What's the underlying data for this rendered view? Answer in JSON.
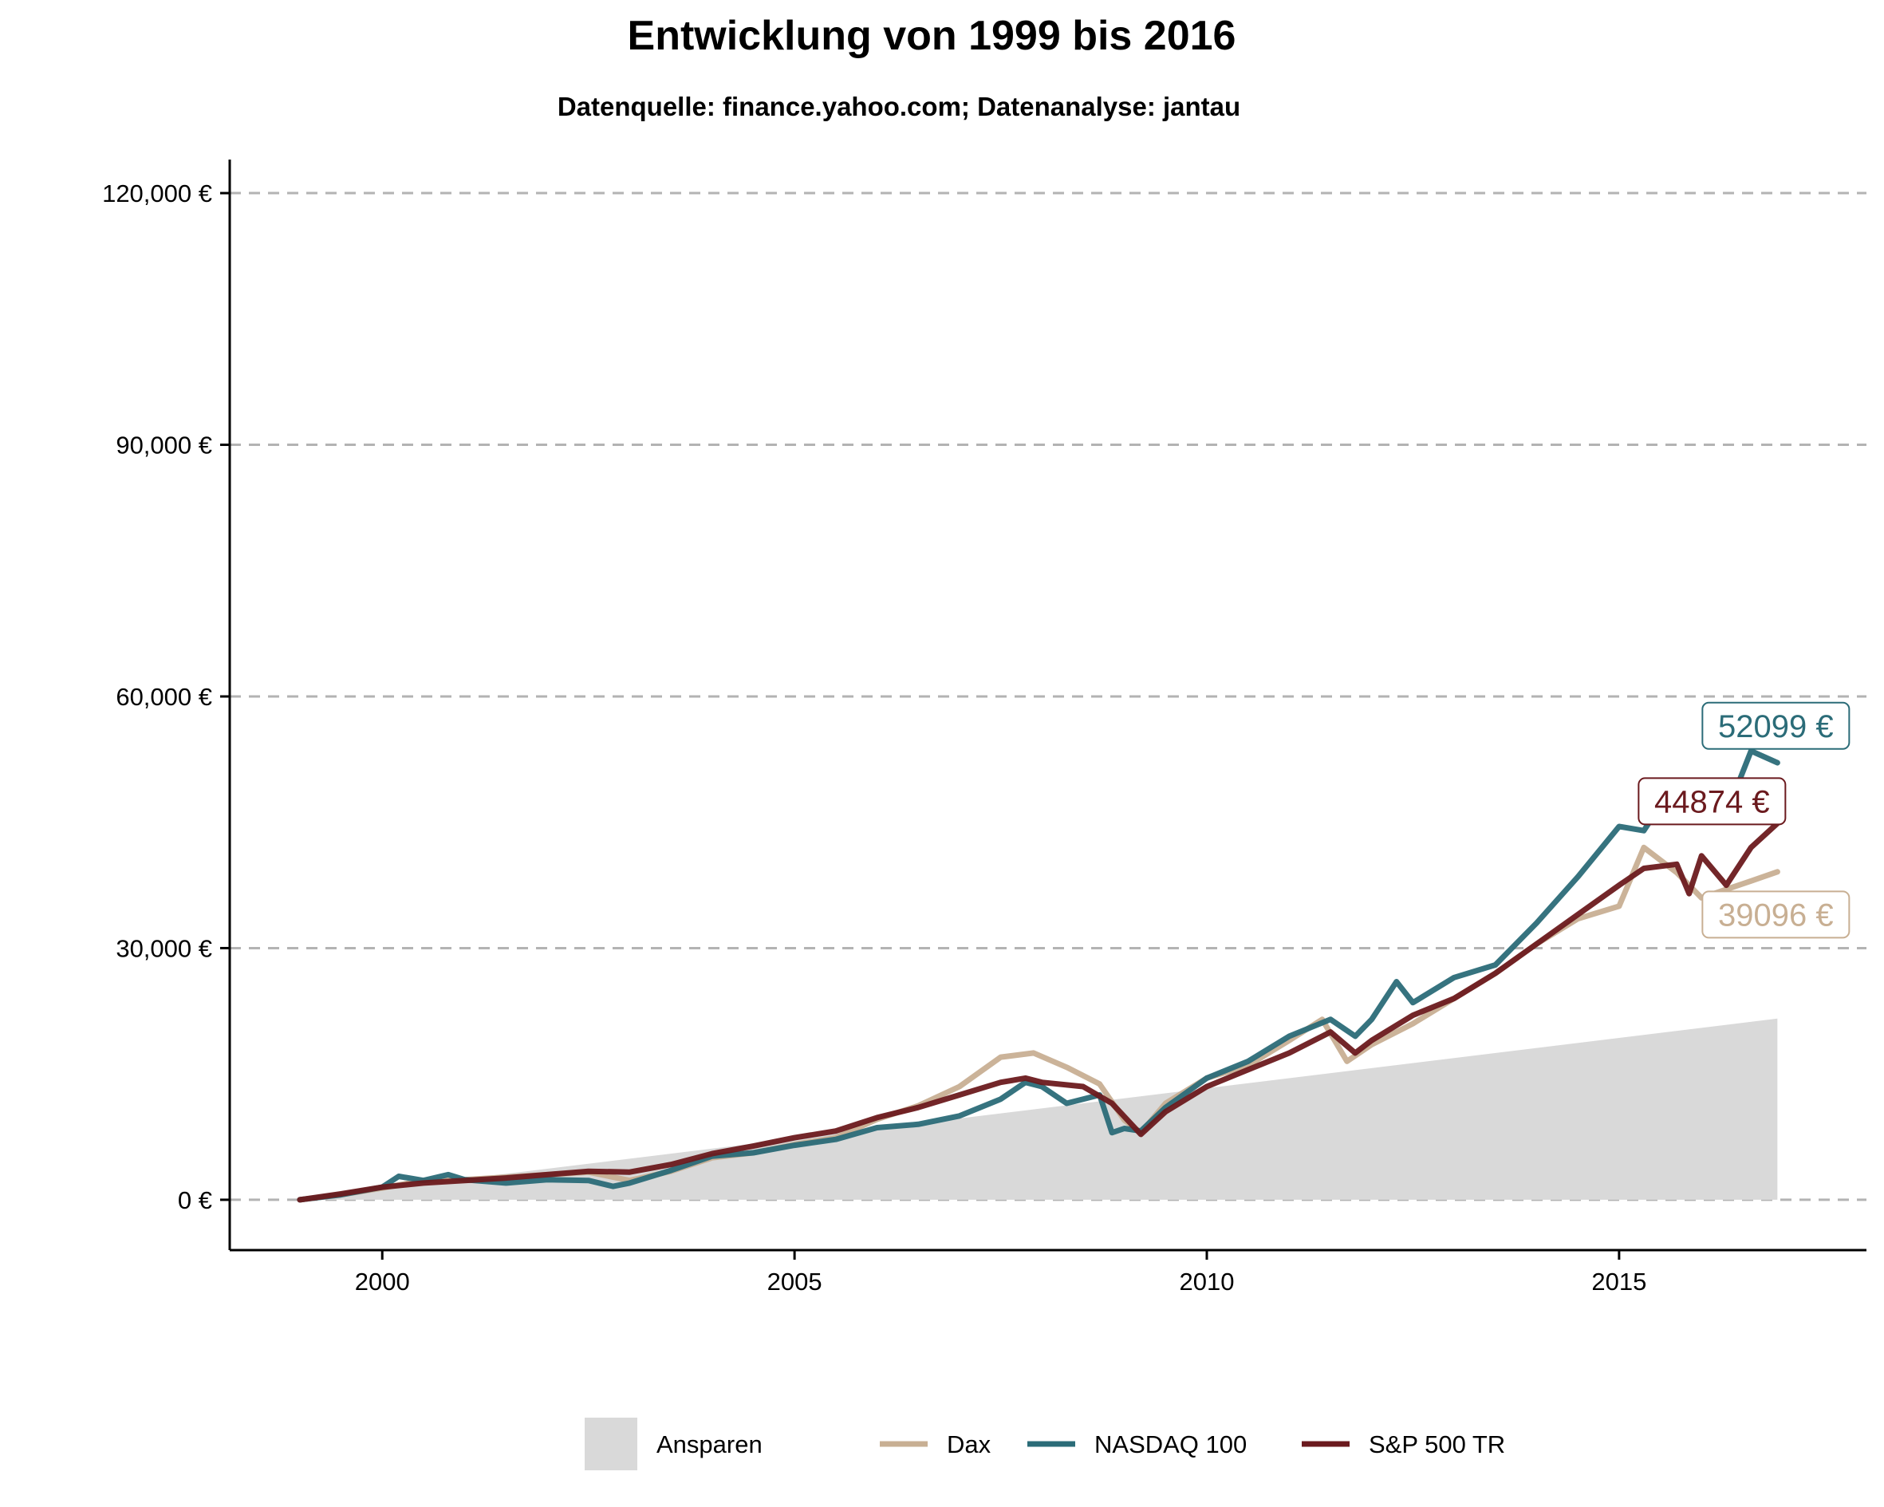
{
  "chart_data": {
    "type": "line",
    "title": "Entwicklung von 1999 bis 2016",
    "subtitle": "Datenquelle: finance.yahoo.com; Datenanalyse: jantau",
    "xlim": [
      1998.15,
      2018.0
    ],
    "ylim": [
      -6000,
      124000
    ],
    "y_ticks": [
      0,
      30000,
      60000,
      90000,
      120000
    ],
    "y_tick_labels": [
      "0 €",
      "30,000 €",
      "60,000 €",
      "90,000 €",
      "120,000 €"
    ],
    "x_ticks": [
      2000,
      2005,
      2010,
      2015
    ],
    "x_tick_labels": [
      "2000",
      "2005",
      "2010",
      "2015"
    ],
    "grid": "horizontal dashed",
    "legend_position": "bottom",
    "area": {
      "name": "Ansparen",
      "color": "#d9d9d9",
      "x": [
        1999.0,
        2016.92
      ],
      "y": [
        100,
        21600
      ]
    },
    "series": [
      {
        "name": "Dax",
        "color": "#c8af93",
        "end_label": "39096 €",
        "points": [
          [
            1999.0,
            0
          ],
          [
            1999.5,
            600
          ],
          [
            2000.0,
            1400
          ],
          [
            2000.5,
            2300
          ],
          [
            2001.0,
            2400
          ],
          [
            2001.5,
            2700
          ],
          [
            2002.0,
            3000
          ],
          [
            2002.5,
            3300
          ],
          [
            2003.0,
            2300
          ],
          [
            2003.5,
            3400
          ],
          [
            2004.0,
            5000
          ],
          [
            2004.5,
            5600
          ],
          [
            2005.0,
            6600
          ],
          [
            2005.5,
            7400
          ],
          [
            2006.0,
            9600
          ],
          [
            2006.5,
            11200
          ],
          [
            2007.0,
            13500
          ],
          [
            2007.5,
            17000
          ],
          [
            2007.9,
            17500
          ],
          [
            2008.3,
            15800
          ],
          [
            2008.7,
            13800
          ],
          [
            2009.0,
            9500
          ],
          [
            2009.2,
            8000
          ],
          [
            2009.5,
            11500
          ],
          [
            2010.0,
            14500
          ],
          [
            2010.5,
            16000
          ],
          [
            2011.0,
            19000
          ],
          [
            2011.4,
            21500
          ],
          [
            2011.7,
            16500
          ],
          [
            2012.0,
            18500
          ],
          [
            2012.5,
            21000
          ],
          [
            2013.0,
            24000
          ],
          [
            2013.5,
            27000
          ],
          [
            2014.0,
            30500
          ],
          [
            2014.5,
            33500
          ],
          [
            2015.0,
            35000
          ],
          [
            2015.3,
            42000
          ],
          [
            2015.7,
            39000
          ],
          [
            2016.0,
            36000
          ],
          [
            2016.3,
            37000
          ],
          [
            2016.6,
            38000
          ],
          [
            2016.92,
            39096
          ]
        ]
      },
      {
        "name": "NASDAQ 100",
        "color": "#2b6c78",
        "end_label": "52099 €",
        "points": [
          [
            1999.0,
            0
          ],
          [
            1999.5,
            600
          ],
          [
            2000.0,
            1500
          ],
          [
            2000.2,
            2800
          ],
          [
            2000.5,
            2300
          ],
          [
            2000.8,
            3000
          ],
          [
            2001.0,
            2400
          ],
          [
            2001.5,
            2000
          ],
          [
            2002.0,
            2400
          ],
          [
            2002.5,
            2300
          ],
          [
            2002.8,
            1600
          ],
          [
            2003.0,
            2000
          ],
          [
            2003.5,
            3500
          ],
          [
            2004.0,
            5200
          ],
          [
            2004.5,
            5600
          ],
          [
            2005.0,
            6500
          ],
          [
            2005.5,
            7200
          ],
          [
            2006.0,
            8600
          ],
          [
            2006.5,
            9000
          ],
          [
            2007.0,
            10000
          ],
          [
            2007.5,
            12000
          ],
          [
            2007.8,
            14000
          ],
          [
            2008.0,
            13500
          ],
          [
            2008.3,
            11500
          ],
          [
            2008.7,
            12500
          ],
          [
            2008.85,
            8000
          ],
          [
            2009.0,
            8500
          ],
          [
            2009.2,
            8200
          ],
          [
            2009.5,
            11000
          ],
          [
            2010.0,
            14500
          ],
          [
            2010.5,
            16500
          ],
          [
            2011.0,
            19500
          ],
          [
            2011.5,
            21500
          ],
          [
            2011.8,
            19500
          ],
          [
            2012.0,
            21500
          ],
          [
            2012.3,
            26000
          ],
          [
            2012.5,
            23500
          ],
          [
            2013.0,
            26500
          ],
          [
            2013.5,
            28000
          ],
          [
            2014.0,
            33000
          ],
          [
            2014.5,
            38500
          ],
          [
            2015.0,
            44500
          ],
          [
            2015.3,
            44000
          ],
          [
            2015.7,
            50000
          ],
          [
            2016.0,
            47500
          ],
          [
            2016.4,
            48500
          ],
          [
            2016.6,
            53500
          ],
          [
            2016.92,
            52099
          ]
        ]
      },
      {
        "name": "S&P 500 TR",
        "color": "#6b1a1e",
        "end_label": "44874 €",
        "points": [
          [
            1999.0,
            0
          ],
          [
            1999.5,
            700
          ],
          [
            2000.0,
            1500
          ],
          [
            2000.5,
            2000
          ],
          [
            2001.0,
            2300
          ],
          [
            2001.5,
            2600
          ],
          [
            2002.0,
            3000
          ],
          [
            2002.5,
            3400
          ],
          [
            2003.0,
            3300
          ],
          [
            2003.5,
            4200
          ],
          [
            2004.0,
            5500
          ],
          [
            2004.5,
            6400
          ],
          [
            2005.0,
            7400
          ],
          [
            2005.5,
            8200
          ],
          [
            2006.0,
            9800
          ],
          [
            2006.5,
            11000
          ],
          [
            2007.0,
            12500
          ],
          [
            2007.5,
            14000
          ],
          [
            2007.8,
            14500
          ],
          [
            2008.0,
            14000
          ],
          [
            2008.5,
            13500
          ],
          [
            2008.85,
            11500
          ],
          [
            2009.2,
            7800
          ],
          [
            2009.5,
            10500
          ],
          [
            2010.0,
            13500
          ],
          [
            2010.5,
            15500
          ],
          [
            2011.0,
            17500
          ],
          [
            2011.5,
            20000
          ],
          [
            2011.8,
            17500
          ],
          [
            2012.0,
            19000
          ],
          [
            2012.5,
            22000
          ],
          [
            2013.0,
            24000
          ],
          [
            2013.5,
            27000
          ],
          [
            2014.0,
            30500
          ],
          [
            2014.5,
            34000
          ],
          [
            2015.0,
            37500
          ],
          [
            2015.3,
            39500
          ],
          [
            2015.7,
            40000
          ],
          [
            2015.85,
            36500
          ],
          [
            2016.0,
            41000
          ],
          [
            2016.3,
            37500
          ],
          [
            2016.6,
            42000
          ],
          [
            2016.92,
            44874
          ]
        ]
      }
    ],
    "legend": [
      {
        "name": "Ansparen",
        "kind": "area",
        "color": "#d9d9d9"
      },
      {
        "name": "Dax",
        "kind": "line",
        "color": "#c8af93"
      },
      {
        "name": "NASDAQ 100",
        "kind": "line",
        "color": "#2b6c78"
      },
      {
        "name": "S&P 500 TR",
        "kind": "line",
        "color": "#6b1a1e"
      }
    ]
  }
}
